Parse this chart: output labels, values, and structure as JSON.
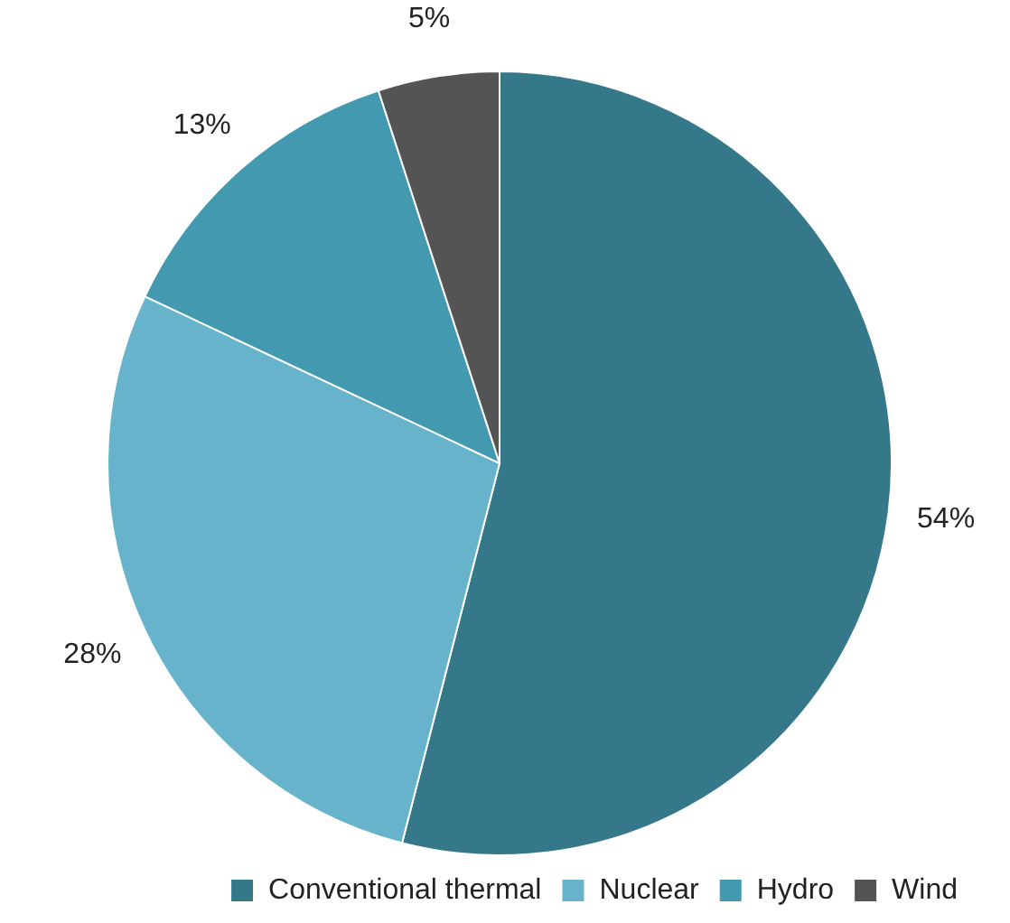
{
  "chart_data": {
    "type": "pie",
    "categories": [
      "Conventional thermal",
      "Nuclear",
      "Hydro",
      "Wind"
    ],
    "values": [
      54,
      28,
      13,
      5
    ],
    "value_labels": [
      "54%",
      "28%",
      "13%",
      "5%"
    ],
    "colors": [
      "#34788a",
      "#67b3cb",
      "#4299b0",
      "#545454"
    ],
    "legend": "bottom right"
  }
}
